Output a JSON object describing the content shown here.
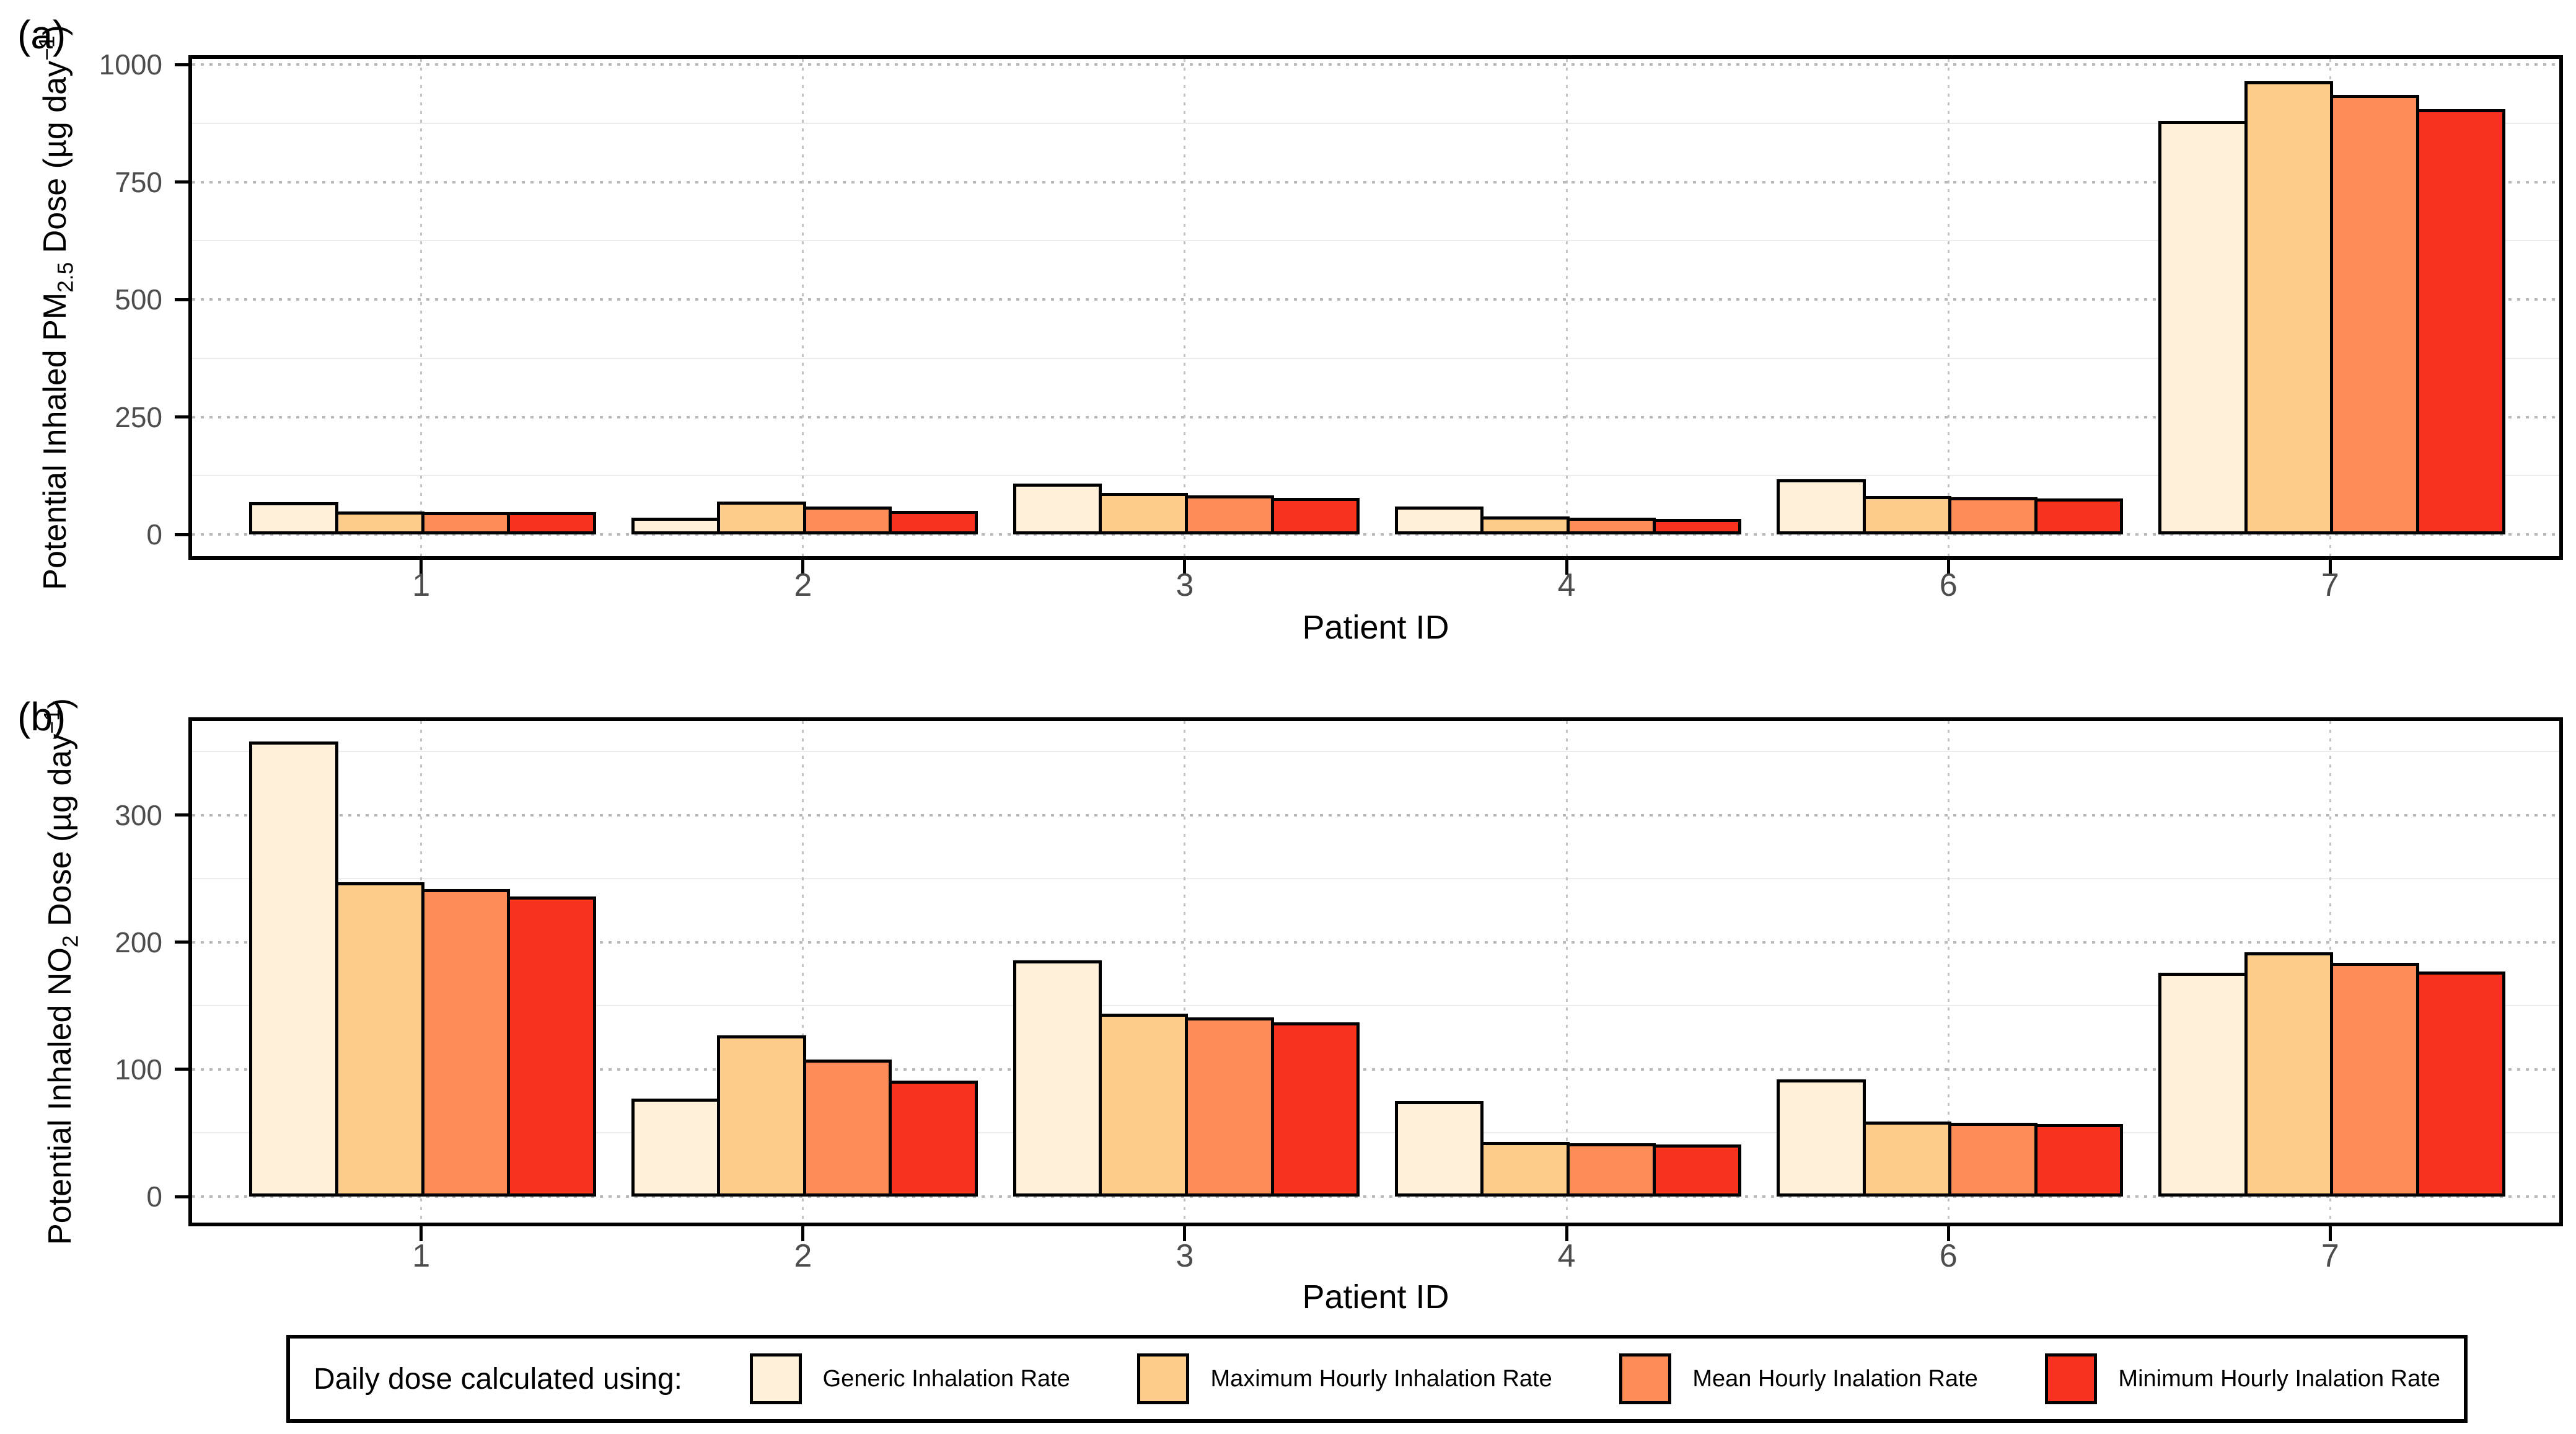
{
  "figure": {
    "panel_a_letter": "(a)",
    "panel_b_letter": "(b)"
  },
  "axes": {
    "a": {
      "y_title_prefix": "Potential Inhaled PM",
      "y_title_sub": "2.5",
      "y_title_mid": " Dose (µg day",
      "y_title_sup": "−1",
      "y_title_suffix": ")",
      "x_title": "Patient ID"
    },
    "b": {
      "y_title_prefix": "Potential Inhaled NO",
      "y_title_sub": "2",
      "y_title_mid": " Dose (µg day",
      "y_title_sup": "−1",
      "y_title_suffix": ")",
      "x_title": "Patient ID"
    }
  },
  "legend": {
    "title": "Daily dose calculated using:",
    "entries": [
      {
        "key": "generic",
        "label": "Generic Inhalation Rate",
        "color": "#fef0d9"
      },
      {
        "key": "max-hourly",
        "label": "Maximum Hourly Inhalation Rate",
        "color": "#fdcc8a"
      },
      {
        "key": "mean-hourly",
        "label": "Mean Hourly Inalation Rate",
        "color": "#fc8d59"
      },
      {
        "key": "min-hourly",
        "label": "Minimum Hourly Inalation Rate",
        "color": "#f8321f"
      }
    ]
  },
  "style": {
    "grid_major_color": "#b9b9b9",
    "grid_minor_color": "#ececec",
    "tick_label_color": "#4d4d4d",
    "bar_outline_color": "#000000"
  },
  "chart_data": [
    {
      "type": "bar",
      "panel": "a",
      "title": "",
      "ylabel": "Potential Inhaled PM2.5 Dose (µg day−1)",
      "xlabel": "Patient ID",
      "categories": [
        "1",
        "2",
        "3",
        "4",
        "6",
        "7"
      ],
      "yticks": [
        0,
        250,
        500,
        750,
        1000
      ],
      "minor_ticks": [
        125,
        375,
        625,
        875
      ],
      "ylim": [
        0,
        1012
      ],
      "grid": true,
      "legend_position": "bottom",
      "series": [
        {
          "name": "Generic Inhalation Rate",
          "key": "generic",
          "color": "#fef0d9",
          "values": [
            68,
            36,
            108,
            59,
            117,
            880
          ]
        },
        {
          "name": "Maximum Hourly Inhalation Rate",
          "key": "max-hourly",
          "color": "#fdcc8a",
          "values": [
            49,
            70,
            89,
            38,
            82,
            965
          ]
        },
        {
          "name": "Mean Hourly Inalation Rate",
          "key": "mean-hourly",
          "color": "#fc8d59",
          "values": [
            48,
            60,
            83,
            35,
            79,
            935
          ]
        },
        {
          "name": "Minimum Hourly Inalation Rate",
          "key": "min-hourly",
          "color": "#f8321f",
          "values": [
            47,
            50,
            78,
            33,
            76,
            905
          ]
        }
      ]
    },
    {
      "type": "bar",
      "panel": "b",
      "title": "",
      "ylabel": "Potential Inhaled NO2 Dose (µg day−1)",
      "xlabel": "Patient ID",
      "categories": [
        "1",
        "2",
        "3",
        "4",
        "6",
        "7"
      ],
      "yticks": [
        0,
        100,
        200,
        300
      ],
      "minor_ticks": [
        50,
        150,
        250,
        350
      ],
      "ylim": [
        0,
        374
      ],
      "grid": true,
      "legend_position": "bottom",
      "series": [
        {
          "name": "Generic Inhalation Rate",
          "key": "generic",
          "color": "#fef0d9",
          "values": [
            358,
            77,
            186,
            75,
            92,
            176
          ]
        },
        {
          "name": "Maximum Hourly Inhalation Rate",
          "key": "max-hourly",
          "color": "#fdcc8a",
          "values": [
            247,
            127,
            144,
            43,
            59,
            192
          ]
        },
        {
          "name": "Mean Hourly Inalation Rate",
          "key": "mean-hourly",
          "color": "#fc8d59",
          "values": [
            242,
            108,
            141,
            42,
            58,
            184
          ]
        },
        {
          "name": "Minimum Hourly Inalation Rate",
          "key": "min-hourly",
          "color": "#f8321f",
          "values": [
            236,
            91,
            137,
            41,
            57,
            177
          ]
        }
      ]
    }
  ]
}
